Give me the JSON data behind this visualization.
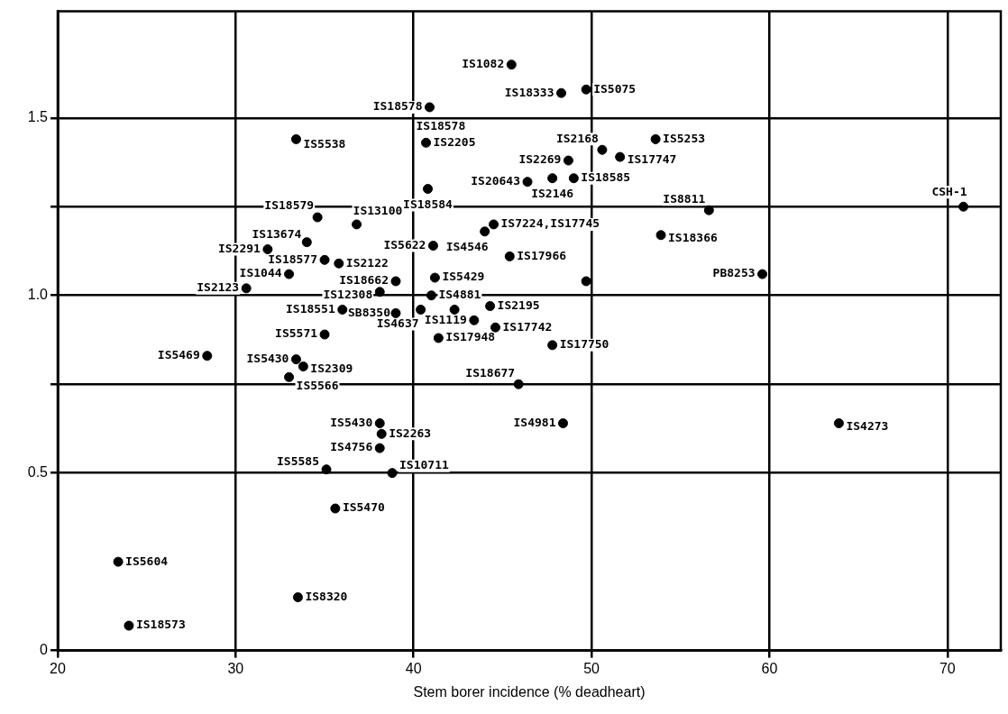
{
  "chart_data": {
    "type": "scatter",
    "xlabel": "Stem borer incidence (% deadheart)",
    "x": [
      45.5,
      40.9,
      48.3,
      49.7,
      33.4,
      40.7,
      48.7,
      50.6,
      53.6,
      51.6,
      46.4,
      47.8,
      49.0,
      40.8,
      56.6,
      70.9,
      34.6,
      36.8,
      34.0,
      35.0,
      35.8,
      31.8,
      33.0,
      30.6,
      39.0,
      38.1,
      36.0,
      39.0,
      35.0,
      44.5,
      44.0,
      41.1,
      41.2,
      41.0,
      44.3,
      49.7,
      45.4,
      53.9,
      59.6,
      43.4,
      44.6,
      47.8,
      42.3,
      41.4,
      45.9,
      28.4,
      33.4,
      33.8,
      33.0,
      38.1,
      38.2,
      38.1,
      35.1,
      38.8,
      35.6,
      23.4,
      33.5,
      24.0,
      48.4,
      63.9,
      40.4
    ],
    "values": [
      1.65,
      1.53,
      1.57,
      1.58,
      1.44,
      1.43,
      1.38,
      1.41,
      1.44,
      1.39,
      1.32,
      1.33,
      1.33,
      1.3,
      1.24,
      1.25,
      1.22,
      1.2,
      1.15,
      1.1,
      1.09,
      1.13,
      1.06,
      1.02,
      1.04,
      1.01,
      0.96,
      0.95,
      0.89,
      1.2,
      1.18,
      1.14,
      1.05,
      1.0,
      0.97,
      1.04,
      1.11,
      1.17,
      1.06,
      0.93,
      0.91,
      0.86,
      0.96,
      0.88,
      0.75,
      0.83,
      0.82,
      0.8,
      0.77,
      0.64,
      0.61,
      0.57,
      0.51,
      0.5,
      0.4,
      0.25,
      0.15,
      0.07,
      0.64,
      0.64,
      0.96
    ],
    "value_labels": [
      "IS1082",
      "IS18578",
      "IS18333",
      "IS5075",
      "IS5538",
      "IS2205",
      "IS2269",
      "IS2168",
      "IS5253",
      "IS17747",
      "IS20643",
      "IS2146",
      "IS18585",
      "IS18584",
      "IS8811",
      "CSH-1",
      "IS18579",
      "IS13100",
      "IS13674",
      "IS18577",
      "IS2122",
      "IS2291",
      "IS1044",
      "IS2123",
      "IS18662",
      "IS12308",
      "IS18551",
      "SB8350",
      "IS5571",
      "IS7224,IS17745",
      "IS4546",
      "IS5622",
      "IS5429",
      "IS4881",
      "IS2195",
      null,
      "IS17966",
      "IS18366",
      "PB8253",
      "IS1119",
      "IS17742",
      "IS17750",
      null,
      "IS17948",
      "IS18677",
      "IS5469",
      "IS5430",
      "IS2309",
      "IS5566",
      "IS5430",
      "IS2263",
      "IS4756",
      "IS5585",
      "IS10711",
      "IS5470",
      "IS5604",
      "IS8320",
      "IS18573",
      "IS4981",
      "IS4273",
      "IS4637"
    ],
    "color": "#000000",
    "marker": "circle",
    "xlim": [
      20,
      73
    ],
    "xticks": [
      20,
      30,
      40,
      50,
      60,
      70
    ],
    "ylim": [
      0,
      1.8
    ],
    "yticks": [
      0,
      0.5,
      {
        "value": 0.75,
        "label": null
      },
      {
        "value": 1.0,
        "label": "1.0"
      },
      {
        "value": 1.25,
        "label": null
      },
      {
        "value": 1.5,
        "label": "1.5"
      }
    ],
    "grid": true,
    "annotations": [
      "IS18578"
    ]
  }
}
